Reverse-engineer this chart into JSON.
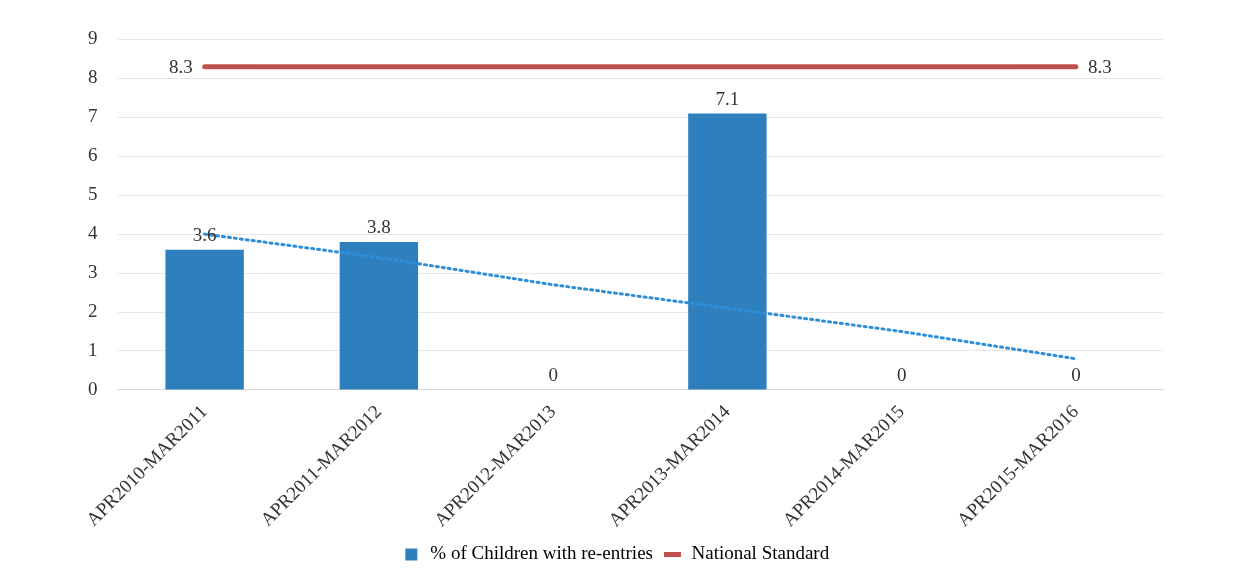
{
  "chart_data": {
    "type": "bar",
    "categories": [
      "APR2010-MAR2011",
      "APR2011-MAR2012",
      "APR2012-MAR2013",
      "APR2013-MAR2014",
      "APR2014-MAR2015",
      "APR2015-MAR2016"
    ],
    "series": [
      {
        "name": "% of Children with re-entries",
        "color": "#2e7fbd",
        "values": [
          3.6,
          3.8,
          0,
          7.1,
          0,
          0
        ],
        "value_labels": [
          "3.6",
          "3.8",
          "0",
          "7.1",
          "0",
          "0"
        ]
      },
      {
        "name": "National Standard",
        "type": "line",
        "color": "#c0504d",
        "values": [
          8.3,
          8.3,
          8.3,
          8.3,
          8.3,
          8.3
        ],
        "value_labels": [
          "8.3",
          null,
          null,
          null,
          null,
          "8.3"
        ]
      },
      {
        "type": "line",
        "color": "#2e8fd8",
        "line_style": "dotted",
        "values": [
          4.0,
          3.4,
          2.7,
          2.1,
          1.5,
          0.8
        ]
      }
    ],
    "ylim": [
      0,
      9
    ],
    "yticks": [
      0,
      1,
      2,
      3,
      4,
      5,
      6,
      7,
      8,
      9
    ],
    "grid": "y",
    "legend": "bottom",
    "marker": "none"
  }
}
